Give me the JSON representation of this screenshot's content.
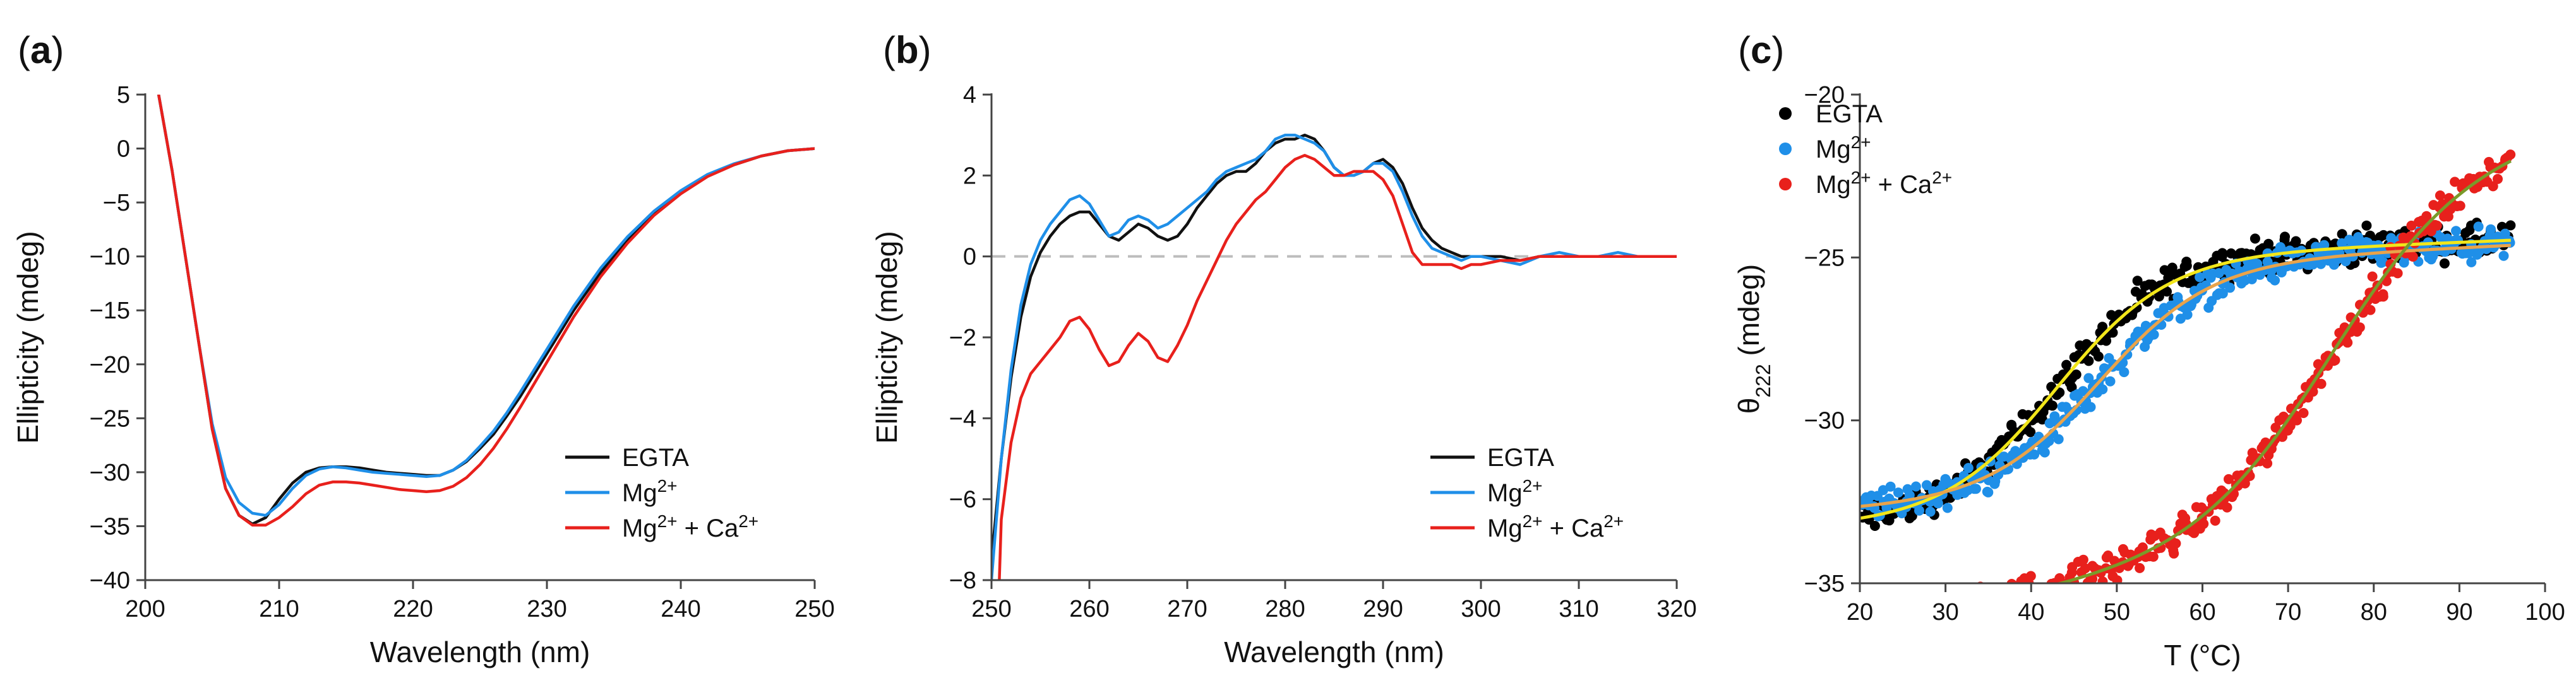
{
  "figure": {
    "panels": [
      "a",
      "b",
      "c"
    ]
  },
  "chart_data": [
    {
      "id": "a",
      "type": "line",
      "panel_label": "a",
      "xlabel": "Wavelength (nm)",
      "ylabel": "Ellipticity (mdeg)",
      "xlim": [
        200,
        250
      ],
      "ylim": [
        -40,
        5
      ],
      "xticks": [
        200,
        210,
        220,
        230,
        240,
        250
      ],
      "yticks": [
        5,
        0,
        -5,
        -10,
        -15,
        -20,
        -25,
        -30,
        -35,
        -40
      ],
      "legend_position": "lower-right",
      "series": [
        {
          "name": "EGTA",
          "name_base": "EGTA",
          "color": "#111111",
          "x": [
            201,
            202,
            203,
            204,
            205,
            206,
            207,
            208,
            209,
            210,
            211,
            212,
            213,
            214,
            215,
            216,
            217,
            218,
            219,
            220,
            221,
            222,
            223,
            224,
            225,
            226,
            227,
            228,
            229,
            230,
            232,
            234,
            236,
            238,
            240,
            242,
            244,
            246,
            248,
            250
          ],
          "y": [
            5,
            -2,
            -10,
            -18,
            -26,
            -31.5,
            -34,
            -34.8,
            -34.2,
            -32.5,
            -31,
            -30,
            -29.6,
            -29.5,
            -29.5,
            -29.6,
            -29.8,
            -30,
            -30.1,
            -30.2,
            -30.3,
            -30.3,
            -29.8,
            -29,
            -27.8,
            -26.5,
            -24.8,
            -23,
            -21,
            -19,
            -15,
            -11.5,
            -8.5,
            -6,
            -4,
            -2.5,
            -1.5,
            -0.7,
            -0.2,
            0
          ]
        },
        {
          "name": "Mg2+",
          "name_base": "Mg",
          "name_sup": "2+",
          "color": "#1f8fe8",
          "x": [
            201,
            202,
            203,
            204,
            205,
            206,
            207,
            208,
            209,
            210,
            211,
            212,
            213,
            214,
            215,
            216,
            217,
            218,
            219,
            220,
            221,
            222,
            223,
            224,
            225,
            226,
            227,
            228,
            229,
            230,
            232,
            234,
            236,
            238,
            240,
            242,
            244,
            246,
            248,
            250
          ],
          "y": [
            5,
            -2,
            -10,
            -18,
            -25.5,
            -30.5,
            -32.8,
            -33.8,
            -34,
            -33,
            -31.5,
            -30.3,
            -29.7,
            -29.5,
            -29.6,
            -29.8,
            -30,
            -30.1,
            -30.2,
            -30.3,
            -30.4,
            -30.3,
            -29.8,
            -28.9,
            -27.6,
            -26.2,
            -24.5,
            -22.6,
            -20.6,
            -18.6,
            -14.6,
            -11.1,
            -8.2,
            -5.8,
            -3.9,
            -2.4,
            -1.4,
            -0.7,
            -0.2,
            0
          ]
        },
        {
          "name": "Mg2+ + Ca2+",
          "name_base": "Mg",
          "name_sup": "2+",
          "name_mid": " + Ca",
          "name_sup2": "2+",
          "color": "#e8201c",
          "x": [
            201,
            202,
            203,
            204,
            205,
            206,
            207,
            208,
            209,
            210,
            211,
            212,
            213,
            214,
            215,
            216,
            217,
            218,
            219,
            220,
            221,
            222,
            223,
            224,
            225,
            226,
            227,
            228,
            229,
            230,
            232,
            234,
            236,
            238,
            240,
            242,
            244,
            246,
            248,
            250
          ],
          "y": [
            5,
            -2,
            -10,
            -18,
            -26,
            -31.5,
            -34,
            -34.9,
            -34.9,
            -34.2,
            -33.2,
            -32,
            -31.2,
            -30.9,
            -30.9,
            -31,
            -31.2,
            -31.4,
            -31.6,
            -31.7,
            -31.8,
            -31.7,
            -31.3,
            -30.5,
            -29.3,
            -27.8,
            -26,
            -24,
            -21.9,
            -19.8,
            -15.6,
            -11.9,
            -8.8,
            -6.2,
            -4.2,
            -2.6,
            -1.5,
            -0.7,
            -0.2,
            0
          ]
        }
      ]
    },
    {
      "id": "b",
      "type": "line",
      "panel_label": "b",
      "xlabel": "Wavelength (nm)",
      "ylabel": "Ellipticity (mdeg)",
      "xlim": [
        250,
        320
      ],
      "ylim": [
        -8,
        4
      ],
      "xticks": [
        250,
        260,
        270,
        280,
        290,
        300,
        310,
        320
      ],
      "yticks": [
        4,
        2,
        0,
        -2,
        -4,
        -6,
        -8
      ],
      "reference_line_y": 0,
      "legend_position": "lower-right",
      "series": [
        {
          "name": "EGTA",
          "name_base": "EGTA",
          "color": "#111111",
          "x": [
            250,
            251,
            252,
            253,
            254,
            255,
            256,
            257,
            258,
            259,
            260,
            261,
            262,
            263,
            264,
            265,
            266,
            267,
            268,
            269,
            270,
            271,
            272,
            273,
            274,
            275,
            276,
            277,
            278,
            279,
            280,
            281,
            282,
            283,
            284,
            285,
            286,
            287,
            288,
            289,
            290,
            291,
            292,
            293,
            294,
            295,
            296,
            297,
            298,
            299,
            300,
            302,
            304,
            306,
            308,
            310,
            312,
            314,
            316,
            318,
            320
          ],
          "y": [
            -7.5,
            -5,
            -3,
            -1.5,
            -0.5,
            0.1,
            0.5,
            0.8,
            1.0,
            1.1,
            1.1,
            0.8,
            0.5,
            0.4,
            0.6,
            0.8,
            0.7,
            0.5,
            0.4,
            0.5,
            0.8,
            1.2,
            1.5,
            1.8,
            2.0,
            2.1,
            2.1,
            2.3,
            2.6,
            2.8,
            2.9,
            2.9,
            3.0,
            2.9,
            2.6,
            2.2,
            2.0,
            2.0,
            2.1,
            2.3,
            2.4,
            2.2,
            1.8,
            1.2,
            0.7,
            0.4,
            0.2,
            0.1,
            0.0,
            0.0,
            0.0,
            0.0,
            -0.1,
            0.0,
            0.0,
            0.0,
            0.0,
            0.0,
            0.0,
            0.0,
            0.0
          ]
        },
        {
          "name": "Mg2+",
          "name_base": "Mg",
          "name_sup": "2+",
          "color": "#1f8fe8",
          "x": [
            250,
            251,
            252,
            253,
            254,
            255,
            256,
            257,
            258,
            259,
            260,
            261,
            262,
            263,
            264,
            265,
            266,
            267,
            268,
            269,
            270,
            271,
            272,
            273,
            274,
            275,
            276,
            277,
            278,
            279,
            280,
            281,
            282,
            283,
            284,
            285,
            286,
            287,
            288,
            289,
            290,
            291,
            292,
            293,
            294,
            295,
            296,
            297,
            298,
            299,
            300,
            302,
            304,
            306,
            308,
            310,
            312,
            314,
            316,
            318,
            320
          ],
          "y": [
            -8,
            -5,
            -2.8,
            -1.2,
            -0.2,
            0.4,
            0.8,
            1.1,
            1.4,
            1.5,
            1.3,
            0.9,
            0.5,
            0.6,
            0.9,
            1.0,
            0.9,
            0.7,
            0.8,
            1.0,
            1.2,
            1.4,
            1.6,
            1.9,
            2.1,
            2.2,
            2.3,
            2.4,
            2.6,
            2.9,
            3.0,
            3.0,
            2.9,
            2.8,
            2.6,
            2.2,
            2.0,
            2.0,
            2.1,
            2.3,
            2.3,
            2.1,
            1.6,
            1.0,
            0.5,
            0.2,
            0.1,
            0.0,
            -0.1,
            0.0,
            0.0,
            -0.1,
            -0.2,
            0.0,
            0.1,
            0.0,
            0.0,
            0.1,
            0.0,
            0.0,
            0.0
          ]
        },
        {
          "name": "Mg2+ + Ca2+",
          "name_base": "Mg",
          "name_sup": "2+",
          "name_mid": " + Ca",
          "name_sup2": "2+",
          "color": "#e8201c",
          "x": [
            250.8,
            251,
            252,
            253,
            254,
            255,
            256,
            257,
            258,
            259,
            260,
            261,
            262,
            263,
            264,
            265,
            266,
            267,
            268,
            269,
            270,
            271,
            272,
            273,
            274,
            275,
            276,
            277,
            278,
            279,
            280,
            281,
            282,
            283,
            284,
            285,
            286,
            287,
            288,
            289,
            290,
            291,
            292,
            293,
            294,
            295,
            296,
            297,
            298,
            299,
            300,
            302,
            304,
            306,
            308,
            310,
            312,
            314,
            316,
            318,
            320
          ],
          "y": [
            -8,
            -6.5,
            -4.6,
            -3.5,
            -2.9,
            -2.6,
            -2.3,
            -2.0,
            -1.6,
            -1.5,
            -1.8,
            -2.3,
            -2.7,
            -2.6,
            -2.2,
            -1.9,
            -2.1,
            -2.5,
            -2.6,
            -2.2,
            -1.7,
            -1.1,
            -0.6,
            -0.1,
            0.4,
            0.8,
            1.1,
            1.4,
            1.6,
            1.9,
            2.2,
            2.4,
            2.5,
            2.4,
            2.2,
            2.0,
            2.0,
            2.1,
            2.1,
            2.1,
            1.9,
            1.5,
            0.8,
            0.1,
            -0.2,
            -0.2,
            -0.2,
            -0.2,
            -0.3,
            -0.2,
            -0.2,
            -0.1,
            -0.1,
            0.0,
            0.0,
            0.0,
            0.0,
            0.0,
            0.0,
            0.0,
            0.0
          ]
        }
      ]
    },
    {
      "id": "c",
      "type": "scatter",
      "panel_label": "c",
      "xlabel": "T (°C)",
      "ylabel_base": "θ",
      "ylabel_sub": "222",
      "ylabel_rest": " (mdeg)",
      "xlim": [
        20,
        100
      ],
      "ylim": [
        -35,
        -20
      ],
      "xticks": [
        20,
        30,
        40,
        50,
        60,
        70,
        80,
        90,
        100
      ],
      "yticks": [
        -20,
        -25,
        -30,
        -35
      ],
      "legend_position": "top-left",
      "series": [
        {
          "name": "EGTA",
          "name_base": "EGTA",
          "color": "#000000",
          "fit_color": "#f2e61a",
          "x_range": [
            20,
            96
          ],
          "sigmoid": {
            "low": -33.0,
            "high": -25.0,
            "mid": 43,
            "width": 6.5,
            "slope": 0.01
          }
        },
        {
          "name": "Mg2+",
          "name_base": "Mg",
          "name_sup": "2+",
          "color": "#1f8fe8",
          "fit_color": "#e9a34a",
          "x_range": [
            20,
            96
          ],
          "sigmoid": {
            "low": -32.4,
            "high": -25.2,
            "mid": 48,
            "width": 6.5,
            "slope": 0.012
          }
        },
        {
          "name": "Mg2+ + Ca2+",
          "name_base": "Mg",
          "name_sup": "2+",
          "name_mid": " + Ca",
          "name_sup2": "2+",
          "color": "#e8201c",
          "fit_color": "#7a9a2a",
          "x_range": [
            20,
            96
          ],
          "sigmoid": {
            "low": -33.8,
            "high": -22.2,
            "mid": 75,
            "width": 8,
            "slope": 0.045
          }
        }
      ]
    }
  ]
}
